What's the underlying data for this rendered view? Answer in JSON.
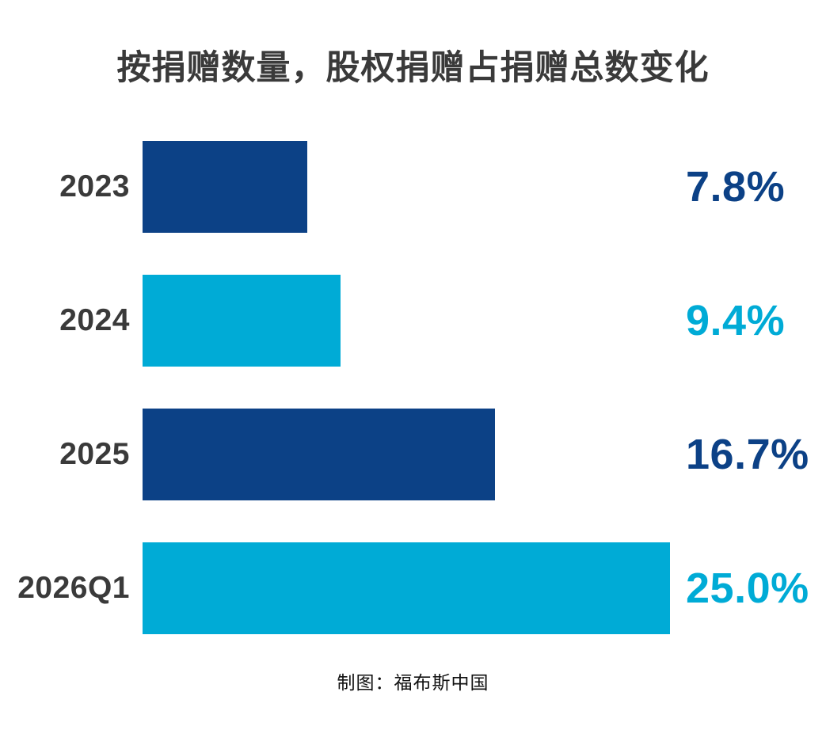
{
  "title": "按捐赠数量，股权捐赠占捐赠总数变化",
  "source_note": "制图：福布斯中国",
  "colors": {
    "navy": "#0c4186",
    "cyan": "#00abd6",
    "title_text": "#3a3a3a",
    "category_label_text": "#3a3a3a",
    "background": "#ffffff"
  },
  "chart_data": {
    "type": "bar",
    "orientation": "horizontal",
    "title": "按捐赠数量，股权捐赠占捐赠总数变化",
    "categories": [
      "2023",
      "2024",
      "2025",
      "2026Q1"
    ],
    "values": [
      7.8,
      9.4,
      16.7,
      25.0
    ],
    "value_labels": [
      "7.8%",
      "9.4%",
      "16.7%",
      "25.0%"
    ],
    "bar_colors": [
      "#0c4186",
      "#00abd6",
      "#0c4186",
      "#00abd6"
    ],
    "xlabel": "",
    "ylabel": "",
    "xlim": [
      0,
      25
    ],
    "grid": false,
    "legend": "none",
    "value_label_position": "right-of-bar",
    "source_note": "制图：福布斯中国"
  }
}
